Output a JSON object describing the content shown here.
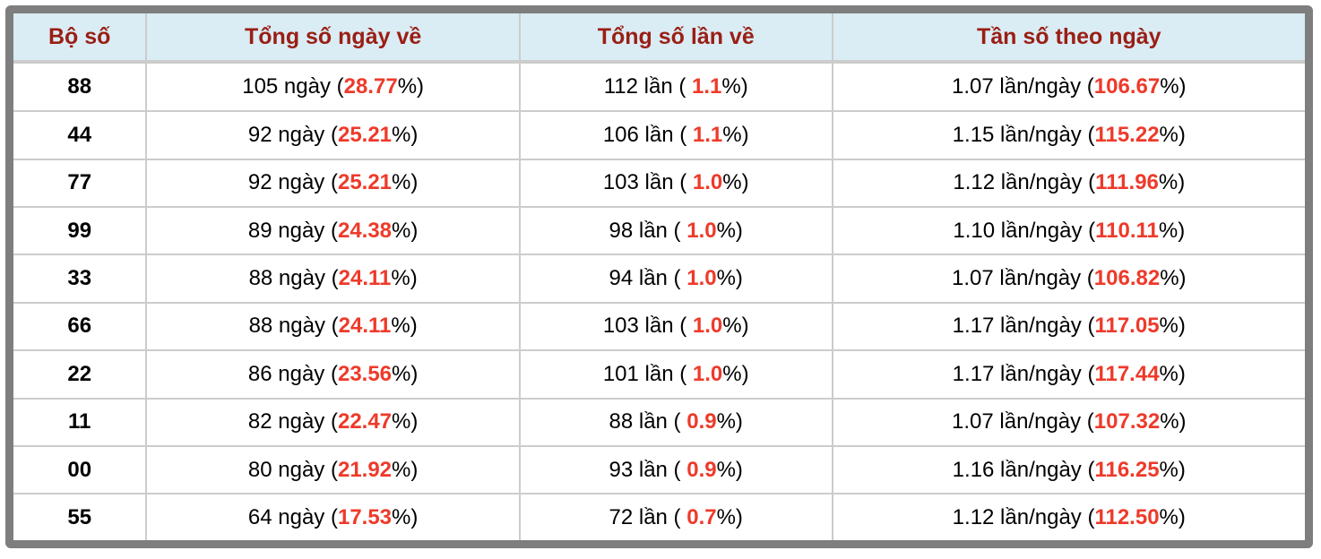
{
  "colors": {
    "frame_border": "#7e7e7e",
    "header_background": "#daecf4",
    "header_text": "#9a1e14",
    "grid_line": "#cccccc",
    "highlight_red": "#ee3a2a",
    "body_text": "#000000"
  },
  "table": {
    "headers": [
      {
        "label": "Bộ số"
      },
      {
        "label": "Tổng số ngày về"
      },
      {
        "label": "Tổng số lần về"
      },
      {
        "label": "Tần số theo ngày"
      }
    ],
    "rows": [
      {
        "pair": "88",
        "days_pre": "105 ngày (",
        "days_red": "28.77",
        "days_post": "%)",
        "times_pre": "112 lần ( ",
        "times_red": "1.1",
        "times_post": "%)",
        "freq_pre": "1.07 lần/ngày (",
        "freq_red": "106.67",
        "freq_post": "%)"
      },
      {
        "pair": "44",
        "days_pre": "92 ngày (",
        "days_red": "25.21",
        "days_post": "%)",
        "times_pre": "106 lần ( ",
        "times_red": "1.1",
        "times_post": "%)",
        "freq_pre": "1.15 lần/ngày (",
        "freq_red": "115.22",
        "freq_post": "%)"
      },
      {
        "pair": "77",
        "days_pre": "92 ngày (",
        "days_red": "25.21",
        "days_post": "%)",
        "times_pre": "103 lần ( ",
        "times_red": "1.0",
        "times_post": "%)",
        "freq_pre": "1.12 lần/ngày (",
        "freq_red": "111.96",
        "freq_post": "%)"
      },
      {
        "pair": "99",
        "days_pre": "89 ngày (",
        "days_red": "24.38",
        "days_post": "%)",
        "times_pre": "98 lần ( ",
        "times_red": "1.0",
        "times_post": "%)",
        "freq_pre": "1.10 lần/ngày (",
        "freq_red": "110.11",
        "freq_post": "%)"
      },
      {
        "pair": "33",
        "days_pre": "88 ngày (",
        "days_red": "24.11",
        "days_post": "%)",
        "times_pre": "94 lần ( ",
        "times_red": "1.0",
        "times_post": "%)",
        "freq_pre": "1.07 lần/ngày (",
        "freq_red": "106.82",
        "freq_post": "%)"
      },
      {
        "pair": "66",
        "days_pre": "88 ngày (",
        "days_red": "24.11",
        "days_post": "%)",
        "times_pre": "103 lần ( ",
        "times_red": "1.0",
        "times_post": "%)",
        "freq_pre": "1.17 lần/ngày (",
        "freq_red": "117.05",
        "freq_post": "%)"
      },
      {
        "pair": "22",
        "days_pre": "86 ngày (",
        "days_red": "23.56",
        "days_post": "%)",
        "times_pre": "101 lần ( ",
        "times_red": "1.0",
        "times_post": "%)",
        "freq_pre": "1.17 lần/ngày (",
        "freq_red": "117.44",
        "freq_post": "%)"
      },
      {
        "pair": "11",
        "days_pre": "82 ngày (",
        "days_red": "22.47",
        "days_post": "%)",
        "times_pre": "88 lần ( ",
        "times_red": "0.9",
        "times_post": "%)",
        "freq_pre": "1.07 lần/ngày (",
        "freq_red": "107.32",
        "freq_post": "%)"
      },
      {
        "pair": "00",
        "days_pre": "80 ngày (",
        "days_red": "21.92",
        "days_post": "%)",
        "times_pre": "93 lần ( ",
        "times_red": "0.9",
        "times_post": "%)",
        "freq_pre": "1.16 lần/ngày (",
        "freq_red": "116.25",
        "freq_post": "%)"
      },
      {
        "pair": "55",
        "days_pre": "64 ngày (",
        "days_red": "17.53",
        "days_post": "%)",
        "times_pre": "72 lần ( ",
        "times_red": "0.7",
        "times_post": "%)",
        "freq_pre": "1.12 lần/ngày (",
        "freq_red": "112.50",
        "freq_post": "%)"
      }
    ]
  }
}
